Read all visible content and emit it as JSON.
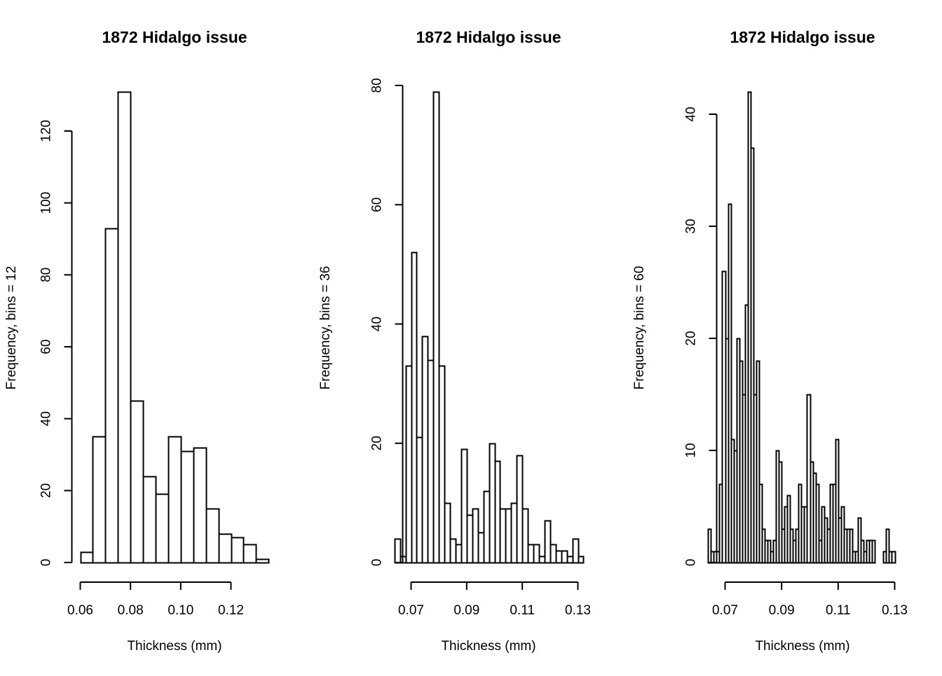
{
  "chart_data": [
    {
      "type": "bar",
      "title": "1872 Hidalgo issue",
      "xlabel": "Thickness (mm)",
      "ylabel": "Frequency, bins = 12",
      "xlim": [
        0.06,
        0.135
      ],
      "ylim": [
        0,
        131
      ],
      "xticks": [
        0.06,
        0.08,
        0.1,
        0.12
      ],
      "xtick_labels": [
        "0.06",
        "0.08",
        "0.10",
        "0.12"
      ],
      "yticks": [
        0,
        20,
        40,
        60,
        80,
        100,
        120
      ],
      "ytick_labels": [
        "0",
        "20",
        "40",
        "60",
        "80",
        "100",
        "120"
      ],
      "bin_start": 0.06,
      "bin_width": 0.005,
      "values": [
        3,
        35,
        93,
        131,
        45,
        24,
        19,
        35,
        31,
        32,
        15,
        8,
        7,
        5,
        1
      ],
      "grid": false
    },
    {
      "type": "bar",
      "title": "1872 Hidalgo issue",
      "xlabel": "Thickness (mm)",
      "ylabel": "Frequency, bins = 36",
      "xlim": [
        0.064,
        0.132
      ],
      "ylim": [
        0,
        80
      ],
      "xticks": [
        0.07,
        0.09,
        0.11,
        0.13
      ],
      "xtick_labels": [
        "0.07",
        "0.09",
        "0.11",
        "0.13"
      ],
      "yticks": [
        0,
        20,
        40,
        60,
        80
      ],
      "ytick_labels": [
        "0",
        "20",
        "40",
        "60",
        "80"
      ],
      "bin_start": 0.064,
      "bin_width": 0.002,
      "values": [
        4,
        1,
        33,
        52,
        21,
        38,
        34,
        79,
        33,
        10,
        4,
        3,
        19,
        8,
        9,
        5,
        12,
        20,
        17,
        9,
        9,
        10,
        18,
        9,
        3,
        3,
        1,
        7,
        3,
        2,
        2,
        1,
        4,
        1
      ],
      "grid": false
    },
    {
      "type": "bar",
      "title": "1872 Hidalgo issue",
      "xlabel": "Thickness (mm)",
      "ylabel": "Frequency, bins = 60",
      "xlim": [
        0.064,
        0.131
      ],
      "ylim": [
        0,
        42
      ],
      "xticks": [
        0.07,
        0.09,
        0.11,
        0.13
      ],
      "xtick_labels": [
        "0.07",
        "0.09",
        "0.11",
        "0.13"
      ],
      "yticks": [
        0,
        10,
        20,
        30,
        40
      ],
      "ytick_labels": [
        "0",
        "10",
        "20",
        "30",
        "40"
      ],
      "bin_start": 0.064,
      "bin_width": 0.001,
      "values": [
        3,
        1,
        1,
        1,
        7,
        26,
        20,
        32,
        11,
        10,
        20,
        18,
        15,
        23,
        42,
        37,
        15,
        18,
        7,
        3,
        2,
        2,
        1,
        2,
        10,
        9,
        3,
        5,
        6,
        3,
        2,
        3,
        7,
        5,
        5,
        15,
        9,
        8,
        7,
        2,
        5,
        4,
        3,
        7,
        7,
        11,
        4,
        5,
        3,
        3,
        3,
        1,
        1,
        4,
        2,
        1,
        2,
        2,
        2,
        0,
        0,
        0,
        1,
        3,
        1,
        1
      ],
      "grid": false
    }
  ]
}
